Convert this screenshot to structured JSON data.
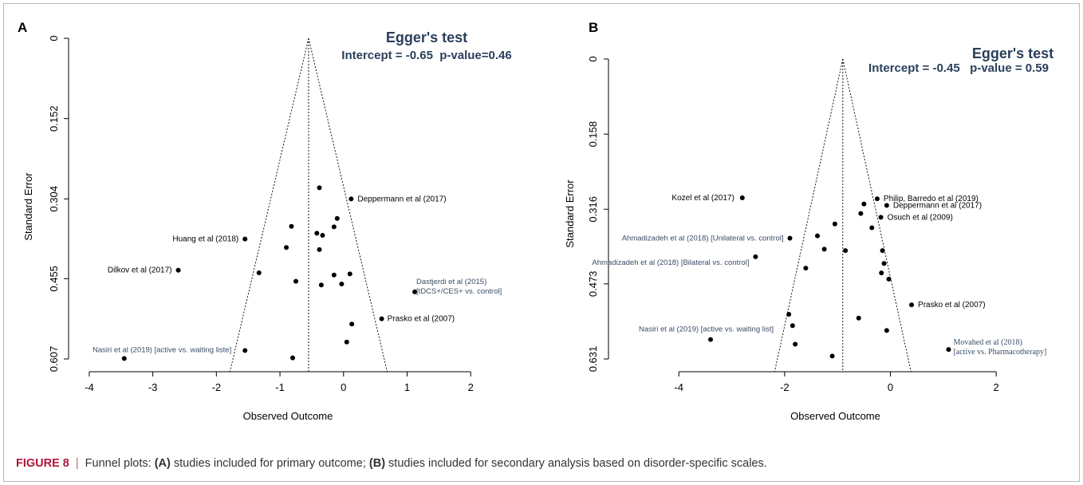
{
  "caption": {
    "label": "FIGURE 8",
    "separator": "|",
    "intro": "Funnel plots: ",
    "a_tag": "(A)",
    "a_text": " studies included for primary outcome; ",
    "b_tag": "(B)",
    "b_text": " studies included for secondary analysis based on disorder-specific scales."
  },
  "chart_data": [
    {
      "type": "scatter",
      "panel": "A",
      "title": "Egger's test",
      "subtitle": "Intercept = -0.65  p-value=0.46",
      "xlabel": "Observed Outcome",
      "ylabel": "Standard Error",
      "xlim": [
        -4.3,
        2.75
      ],
      "ylim": [
        0,
        0.607
      ],
      "y_reversed": true,
      "x_ticks": [
        -4,
        -3,
        -2,
        -1,
        0,
        1,
        2
      ],
      "x_tick_labels": [
        "-4",
        "-3",
        "-2",
        "-1",
        "0",
        "1",
        "2"
      ],
      "y_ticks": [
        0,
        0.152,
        0.304,
        0.455,
        0.607
      ],
      "y_tick_labels": [
        "0",
        "0.152",
        "0.304",
        "0.455",
        "0.607"
      ],
      "funnel": {
        "center": -0.55,
        "max_se": 0.607
      },
      "points": [
        {
          "x": -0.38,
          "y": 0.283
        },
        {
          "x": 0.12,
          "y": 0.304,
          "label": "Deppermann et al (2017)"
        },
        {
          "x": -0.1,
          "y": 0.341
        },
        {
          "x": -0.82,
          "y": 0.356
        },
        {
          "x": -0.15,
          "y": 0.357
        },
        {
          "x": -0.42,
          "y": 0.369
        },
        {
          "x": -0.33,
          "y": 0.373
        },
        {
          "x": -1.55,
          "y": 0.38,
          "label": "Huang et al (2018)"
        },
        {
          "x": -0.9,
          "y": 0.396
        },
        {
          "x": -0.38,
          "y": 0.4
        },
        {
          "x": -2.6,
          "y": 0.439,
          "label": "Dilkov et al (2017)"
        },
        {
          "x": -1.33,
          "y": 0.444
        },
        {
          "x": -0.15,
          "y": 0.448
        },
        {
          "x": 0.1,
          "y": 0.446
        },
        {
          "x": -0.75,
          "y": 0.46
        },
        {
          "x": -0.35,
          "y": 0.467
        },
        {
          "x": -0.03,
          "y": 0.465
        },
        {
          "x": 1.12,
          "y": 0.48,
          "label": "Dastjerdi et al (2015)",
          "label2": "[tDCS+/CES+ vs. control]"
        },
        {
          "x": 0.6,
          "y": 0.531,
          "label": "Prasko et al (2007)"
        },
        {
          "x": 0.13,
          "y": 0.541
        },
        {
          "x": 0.05,
          "y": 0.575
        },
        {
          "x": -1.55,
          "y": 0.591
        },
        {
          "x": -3.45,
          "y": 0.606,
          "label": "Nasiri et al (2019) [active vs. waiting liste]"
        },
        {
          "x": -0.8,
          "y": 0.605
        }
      ]
    },
    {
      "type": "scatter",
      "panel": "B",
      "title": "Egger's test",
      "subtitle": "Intercept = -0.45   p-value = 0.59",
      "xlabel": "Observed Outcome",
      "ylabel": "Standard Error",
      "xlim": [
        -5.3,
        3.4
      ],
      "ylim": [
        0,
        0.631
      ],
      "y_reversed": true,
      "x_ticks": [
        -4,
        -2,
        0,
        2
      ],
      "x_tick_labels": [
        "-4",
        "-2",
        "0",
        "2"
      ],
      "y_ticks": [
        0,
        0.158,
        0.316,
        0.473,
        0.631
      ],
      "y_tick_labels": [
        "0",
        "0.158",
        "0.316",
        "0.473",
        "0.631"
      ],
      "funnel": {
        "center": -0.9,
        "max_se": 0.631
      },
      "points": [
        {
          "x": -2.8,
          "y": 0.292,
          "label": "Kozel et al (2017)"
        },
        {
          "x": -0.25,
          "y": 0.294,
          "label": "Philip, Barredo et al (2019)"
        },
        {
          "x": -0.5,
          "y": 0.305
        },
        {
          "x": -0.07,
          "y": 0.308,
          "label": "Deppermann et al (2017)"
        },
        {
          "x": -0.56,
          "y": 0.325
        },
        {
          "x": -0.18,
          "y": 0.333,
          "label": "Osuch et al (2009)"
        },
        {
          "x": -1.05,
          "y": 0.347
        },
        {
          "x": -0.35,
          "y": 0.355
        },
        {
          "x": -1.38,
          "y": 0.372
        },
        {
          "x": -1.9,
          "y": 0.377,
          "label": "Ahmadizadeh et al (2018) [Unilateral vs. control]"
        },
        {
          "x": -1.25,
          "y": 0.4
        },
        {
          "x": -0.85,
          "y": 0.403
        },
        {
          "x": -0.15,
          "y": 0.403
        },
        {
          "x": -2.55,
          "y": 0.416,
          "label": "Ahmadizadeh et al (2018) [Bilateral vs. control]"
        },
        {
          "x": -0.12,
          "y": 0.43
        },
        {
          "x": -1.6,
          "y": 0.44
        },
        {
          "x": -0.17,
          "y": 0.45
        },
        {
          "x": -0.03,
          "y": 0.463
        },
        {
          "x": 0.4,
          "y": 0.517,
          "label": "Prasko et al (2007)"
        },
        {
          "x": -1.92,
          "y": 0.537
        },
        {
          "x": -0.6,
          "y": 0.545
        },
        {
          "x": -1.85,
          "y": 0.561
        },
        {
          "x": -0.07,
          "y": 0.571
        },
        {
          "x": -3.4,
          "y": 0.59,
          "label": "Nasiri et al (2019) [active vs. waiting list]"
        },
        {
          "x": -1.8,
          "y": 0.6
        },
        {
          "x": 1.1,
          "y": 0.611,
          "label": "Movahed et al (2018)",
          "label2": "[active vs. Pharmacotherapy]"
        },
        {
          "x": -1.1,
          "y": 0.625
        }
      ]
    }
  ]
}
